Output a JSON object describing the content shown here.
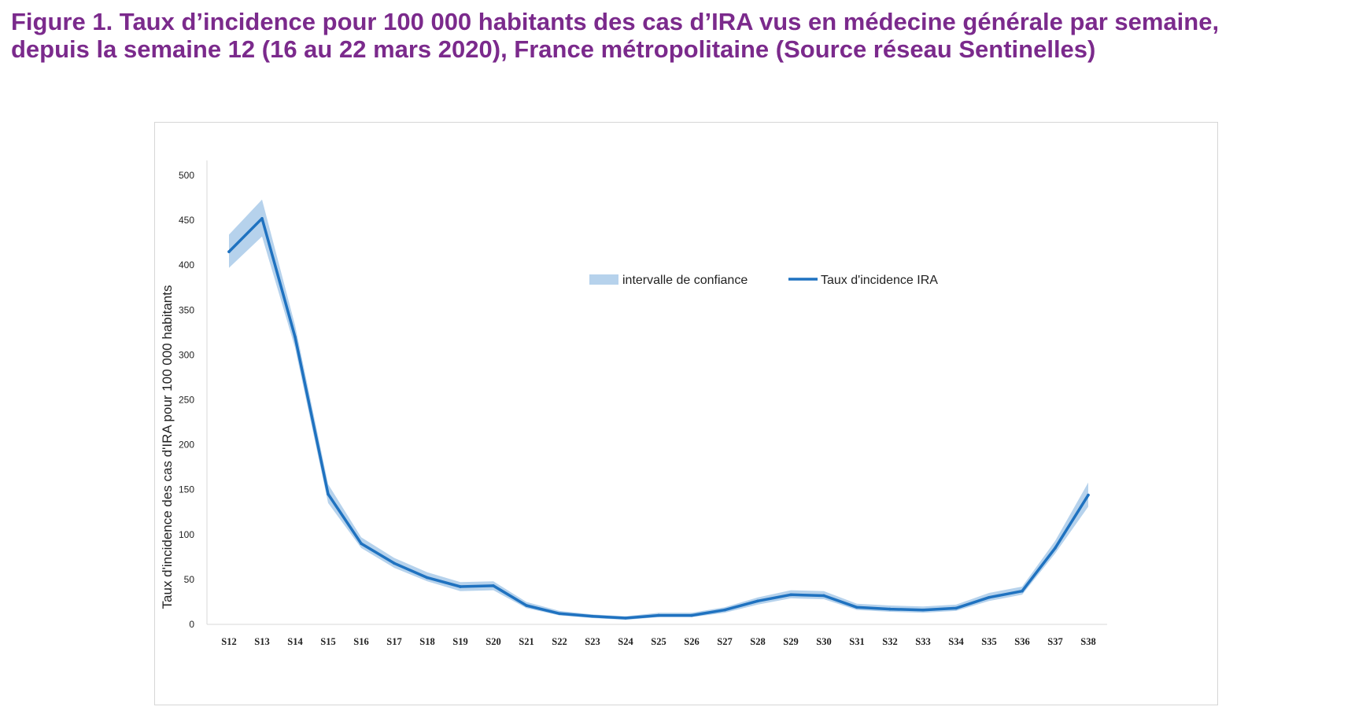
{
  "header": {
    "title_line1": "Figure 1. Taux d’incidence pour 100 000 habitants des cas d’IRA vus en médecine générale par semaine,",
    "title_line2": "depuis la semaine 12 (16 au 22 mars 2020), France métropolitaine (Source réseau Sentinelles)"
  },
  "chart_data": {
    "type": "line",
    "title": "Figure 1. Taux d’incidence pour 100 000 habitants des cas d’IRA vus en médecine générale par semaine, depuis la semaine 12 (16 au 22 mars 2020), France métropolitaine (Source réseau Sentinelles)",
    "xlabel": "",
    "ylabel": "Taux d'incidence des cas d'IRA pour 100 000 habitants",
    "ylim": [
      0,
      500
    ],
    "yticks": [
      0,
      50,
      100,
      150,
      200,
      250,
      300,
      350,
      400,
      450,
      500
    ],
    "grid": false,
    "legend_position": "top-right",
    "categories": [
      "S12",
      "S13",
      "S14",
      "S15",
      "S16",
      "S17",
      "S18",
      "S19",
      "S20",
      "S21",
      "S22",
      "S23",
      "S24",
      "S25",
      "S26",
      "S27",
      "S28",
      "S29",
      "S30",
      "S31",
      "S32",
      "S33",
      "S34",
      "S35",
      "S36",
      "S37",
      "S38"
    ],
    "series": [
      {
        "name": "Taux d'incidence IRA",
        "color": "#1f72c0",
        "values": [
          415,
          452,
          320,
          145,
          90,
          68,
          52,
          42,
          43,
          21,
          12,
          9,
          7,
          10,
          10,
          16,
          26,
          33,
          32,
          19,
          17,
          16,
          18,
          30,
          37,
          85,
          144
        ]
      },
      {
        "name": "intervalle de confiance",
        "color": "#b6d2ec",
        "lower": [
          397,
          432,
          308,
          135,
          85,
          63,
          48,
          37,
          38,
          18,
          10,
          7,
          5,
          8,
          8,
          13,
          22,
          29,
          28,
          16,
          14,
          13,
          15,
          26,
          33,
          79,
          131
        ],
        "upper": [
          434,
          473,
          333,
          156,
          97,
          74,
          58,
          47,
          48,
          25,
          15,
          11,
          9,
          13,
          13,
          19,
          30,
          38,
          37,
          23,
          21,
          20,
          22,
          35,
          42,
          93,
          158
        ]
      }
    ]
  }
}
